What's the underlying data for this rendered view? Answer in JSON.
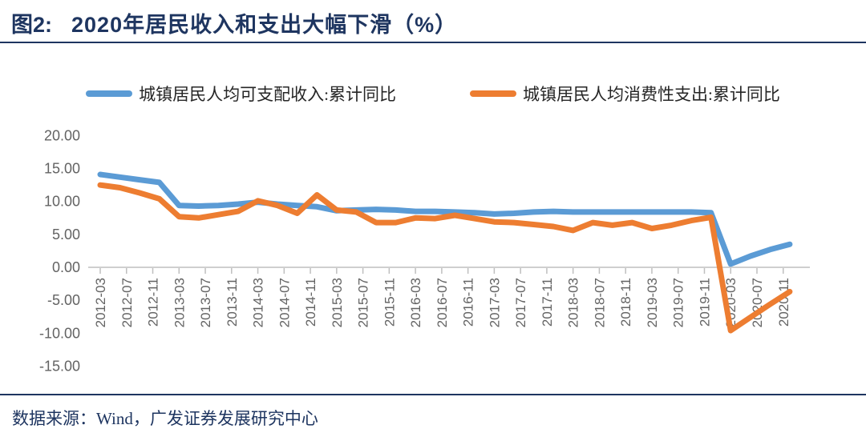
{
  "header": {
    "figure_label": "图2:",
    "title": "2020年居民收入和支出大幅下滑（%）"
  },
  "footer": {
    "source": "数据来源：Wind，广发证券发展研究中心"
  },
  "colors": {
    "accent_navy": "#1e3560",
    "income_blue": "#5b9bd5",
    "consumption_orange": "#ed7d31",
    "axis_text_gray": "#636363",
    "axis_line_gray": "#cfcfcf",
    "tick_gray": "#bfbfbf",
    "legend_text": "#262626"
  },
  "chart_data": {
    "type": "line",
    "title": "2020年居民收入和支出大幅下滑（%）",
    "xlabel": "",
    "ylabel": "",
    "ylim": [
      -15,
      20
    ],
    "grid": false,
    "legend_position": "top",
    "y_tick_labels": [
      "20.00",
      "15.00",
      "10.00",
      "5.00",
      "0.00",
      "-5.00",
      "-10.00",
      "-15.00"
    ],
    "x_tick_labels": [
      "2012-03",
      "2012-07",
      "2012-11",
      "2013-03",
      "2013-07",
      "2013-11",
      "2014-03",
      "2014-07",
      "2014-11",
      "2015-03",
      "2015-07",
      "2015-11",
      "2016-03",
      "2016-07",
      "2016-11",
      "2017-03",
      "2017-07",
      "2017-11",
      "2018-03",
      "2018-07",
      "2018-11",
      "2019-03",
      "2019-07",
      "2019-11",
      "2020-03",
      "2020-07",
      "2020-11"
    ],
    "x": [
      "2012-03",
      "2012-06",
      "2012-09",
      "2012-12",
      "2013-03",
      "2013-06",
      "2013-09",
      "2013-12",
      "2014-03",
      "2014-06",
      "2014-09",
      "2014-12",
      "2015-03",
      "2015-06",
      "2015-09",
      "2015-12",
      "2016-03",
      "2016-06",
      "2016-09",
      "2016-12",
      "2017-03",
      "2017-06",
      "2017-09",
      "2017-12",
      "2018-03",
      "2018-06",
      "2018-09",
      "2018-12",
      "2019-03",
      "2019-06",
      "2019-09",
      "2019-12",
      "2020-03",
      "2020-06",
      "2020-09",
      "2020-12"
    ],
    "series": [
      {
        "id": "income-line",
        "name": "城镇居民人均可支配收入:累计同比",
        "color": "#5b9bd5",
        "values": [
          14.1,
          13.7,
          13.3,
          12.9,
          9.4,
          9.3,
          9.4,
          9.6,
          9.9,
          9.6,
          9.4,
          9.2,
          8.6,
          8.7,
          8.8,
          8.7,
          8.5,
          8.5,
          8.4,
          8.3,
          8.1,
          8.2,
          8.4,
          8.5,
          8.4,
          8.4,
          8.4,
          8.4,
          8.4,
          8.4,
          8.4,
          8.3,
          0.5,
          1.7,
          2.7,
          3.5
        ]
      },
      {
        "id": "consumption-line",
        "name": "城镇居民人均消费性支出:累计同比",
        "color": "#ed7d31",
        "values": [
          12.5,
          12.1,
          11.3,
          10.4,
          7.7,
          7.5,
          8.0,
          8.5,
          10.1,
          9.4,
          8.2,
          11.0,
          8.7,
          8.4,
          6.8,
          6.8,
          7.5,
          7.4,
          7.9,
          7.4,
          6.9,
          6.8,
          6.5,
          6.2,
          5.6,
          6.8,
          6.4,
          6.8,
          5.9,
          6.4,
          7.1,
          7.6,
          -9.6,
          -7.6,
          -5.6,
          -3.7
        ]
      }
    ]
  }
}
